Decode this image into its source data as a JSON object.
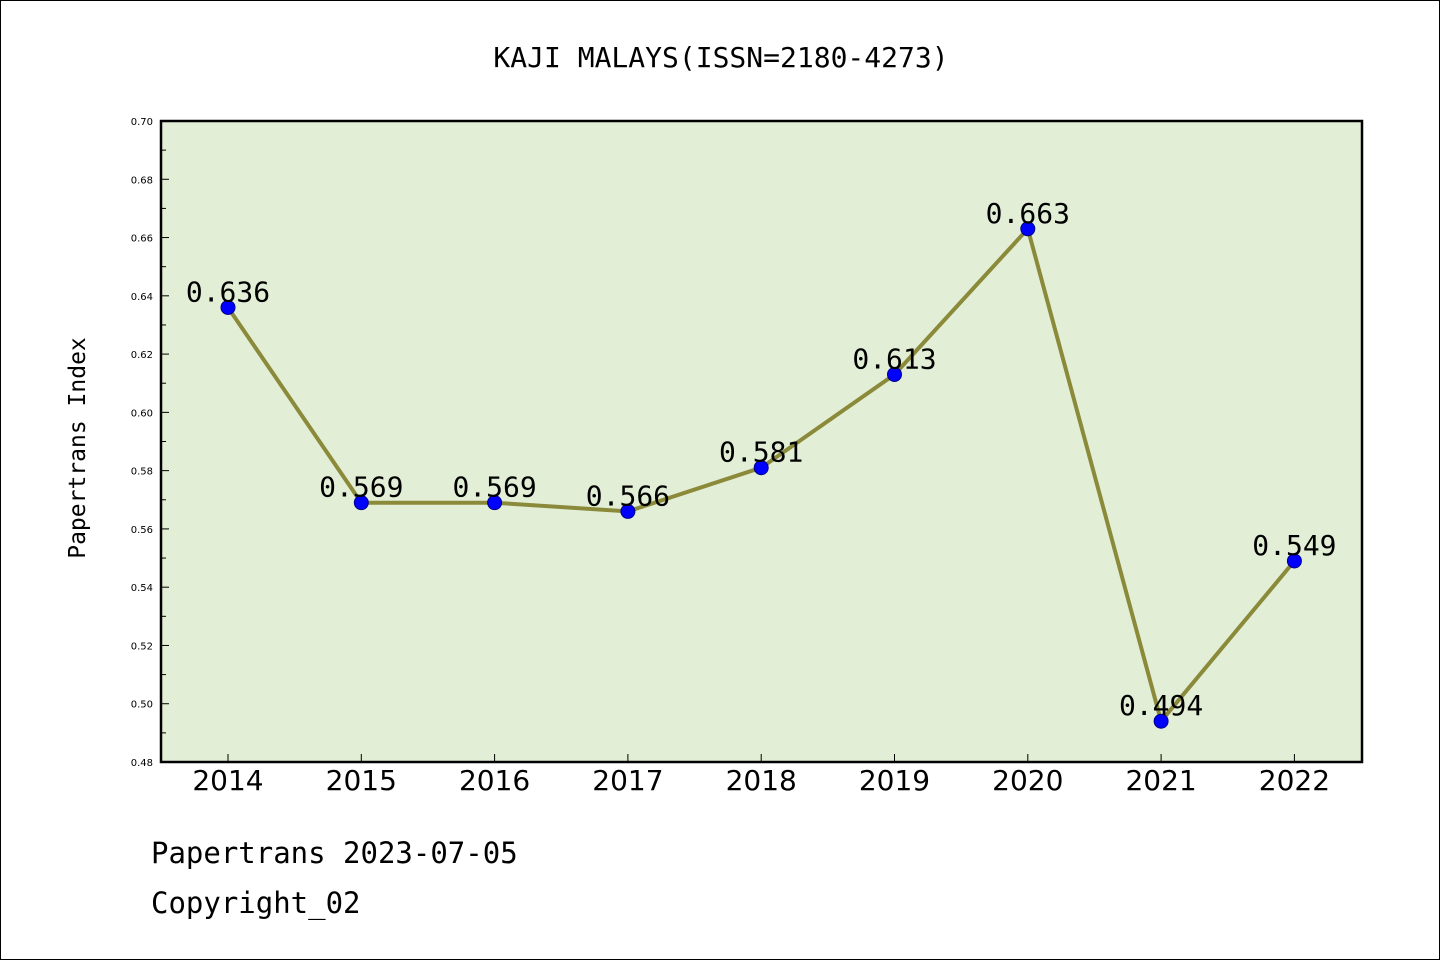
{
  "chart_data": {
    "type": "line",
    "title": "KAJI MALAYS(ISSN=2180-4273)",
    "xlabel": "",
    "ylabel": "Papertrans Index",
    "categories": [
      "2014",
      "2015",
      "2016",
      "2017",
      "2018",
      "2019",
      "2020",
      "2021",
      "2022"
    ],
    "series": [
      {
        "values": [
          0.636,
          0.569,
          0.569,
          0.566,
          0.581,
          0.613,
          0.663,
          0.494,
          0.549
        ],
        "data_labels": [
          "0.636",
          "0.569",
          "0.569",
          "0.566",
          "0.581",
          "0.613",
          "0.663",
          "0.494",
          "0.549"
        ]
      }
    ],
    "ylim": [
      0.48,
      0.7
    ],
    "yticks": [
      "0.48",
      "0.50",
      "0.52",
      "0.54",
      "0.56",
      "0.58",
      "0.60",
      "0.62",
      "0.64",
      "0.66",
      "0.68",
      "0.70"
    ],
    "grid": false,
    "legend": "none",
    "colors": {
      "line": "#8b8a3a",
      "marker": "#0000ff",
      "plot_background": "#e2efd6"
    }
  },
  "footer": {
    "source_line": "Papertrans 2023-07-05",
    "copyright_line": "Copyright_02"
  }
}
